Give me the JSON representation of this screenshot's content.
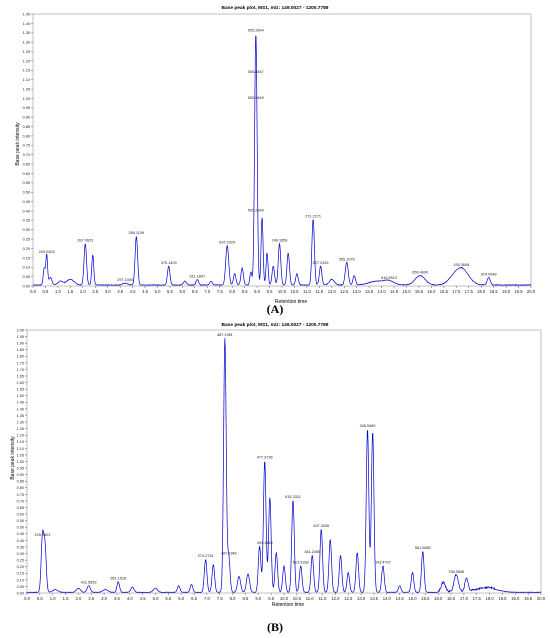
{
  "panels": [
    {
      "label": "(A)",
      "title": "Base peak plot, MS1, m/z: 149.0027 - 1200.7789",
      "xlabel": "Retention time",
      "ylabel": "Base peak intensity",
      "line_color": "#0000cc"
    },
    {
      "label": "(B)",
      "title": "Base peak plot, MS1, m/z: 149.0027 - 1200.7789",
      "xlabel": "Retention time",
      "ylabel": "Base peak intensity",
      "line_color": "#0000cc"
    }
  ],
  "chart_data": [
    {
      "type": "line",
      "title": "Base peak plot, MS1, m/z: 149.0027 - 1200.7789",
      "xlabel": "Retention time",
      "ylabel": "Base peak intensity",
      "xlim": [
        0,
        20
      ],
      "ylim": [
        0,
        1.45
      ],
      "grid": false,
      "x_ticks": [
        "0.0",
        "0.5",
        "1.0",
        "1.5",
        "2.0",
        "2.5",
        "3.0",
        "3.5",
        "4.0",
        "4.5",
        "5.0",
        "5.5",
        "6.0",
        "6.5",
        "7.0",
        "7.5",
        "8.0",
        "8.5",
        "9.0",
        "9.5",
        "10.0",
        "10.5",
        "11.0",
        "11.5",
        "12.0",
        "12.5",
        "13.0",
        "13.5",
        "14.0",
        "14.5",
        "15.0",
        "15.5",
        "16.0",
        "16.5",
        "17.0",
        "17.5",
        "18.0",
        "18.5",
        "19.0",
        "19.5",
        "20.0"
      ],
      "y_ticks": [
        "0.00",
        "0.05",
        "0.10",
        "0.15",
        "0.20",
        "0.25",
        "0.30",
        "0.35",
        "0.40",
        "0.45",
        "0.50",
        "0.55",
        "0.60",
        "0.65",
        "0.70",
        "0.75",
        "0.80",
        "0.85",
        "0.90",
        "0.95",
        "1.00",
        "1.05",
        "1.10",
        "1.15",
        "1.20",
        "1.25",
        "1.30",
        "1.35",
        "1.40",
        "1.45"
      ],
      "peaks": [
        {
          "rt": 0.45,
          "h": 0.09,
          "w": 0.04
        },
        {
          "rt": 0.55,
          "h": 0.16,
          "w": 0.035
        },
        {
          "rt": 0.7,
          "h": 0.04,
          "w": 0.06
        },
        {
          "rt": 1.1,
          "h": 0.02,
          "w": 0.1
        },
        {
          "rt": 1.5,
          "h": 0.03,
          "w": 0.15
        },
        {
          "rt": 2.1,
          "h": 0.22,
          "w": 0.05
        },
        {
          "rt": 2.4,
          "h": 0.16,
          "w": 0.04
        },
        {
          "rt": 3.7,
          "h": 0.01,
          "w": 0.1
        },
        {
          "rt": 4.15,
          "h": 0.26,
          "w": 0.05
        },
        {
          "rt": 5.45,
          "h": 0.1,
          "w": 0.05
        },
        {
          "rt": 6.1,
          "h": 0.02,
          "w": 0.06
        },
        {
          "rt": 6.6,
          "h": 0.03,
          "w": 0.05
        },
        {
          "rt": 7.15,
          "h": 0.02,
          "w": 0.05
        },
        {
          "rt": 7.8,
          "h": 0.21,
          "w": 0.06
        },
        {
          "rt": 8.1,
          "h": 0.06,
          "w": 0.05
        },
        {
          "rt": 8.4,
          "h": 0.09,
          "w": 0.05
        },
        {
          "rt": 8.75,
          "h": 0.07,
          "w": 0.04
        },
        {
          "rt": 8.95,
          "h": 1.34,
          "w": 0.05
        },
        {
          "rt": 9.2,
          "h": 0.36,
          "w": 0.04
        },
        {
          "rt": 9.4,
          "h": 0.17,
          "w": 0.04
        },
        {
          "rt": 9.65,
          "h": 0.1,
          "w": 0.05
        },
        {
          "rt": 9.9,
          "h": 0.22,
          "w": 0.05
        },
        {
          "rt": 10.25,
          "h": 0.17,
          "w": 0.05
        },
        {
          "rt": 10.6,
          "h": 0.06,
          "w": 0.05
        },
        {
          "rt": 11.25,
          "h": 0.35,
          "w": 0.05
        },
        {
          "rt": 11.55,
          "h": 0.1,
          "w": 0.05
        },
        {
          "rt": 12.0,
          "h": 0.03,
          "w": 0.1
        },
        {
          "rt": 12.6,
          "h": 0.12,
          "w": 0.06
        },
        {
          "rt": 12.9,
          "h": 0.05,
          "w": 0.05
        },
        {
          "rt": 13.8,
          "h": 0.02,
          "w": 0.3
        },
        {
          "rt": 14.3,
          "h": 0.02,
          "w": 0.2
        },
        {
          "rt": 15.55,
          "h": 0.05,
          "w": 0.2
        },
        {
          "rt": 16.8,
          "h": 0.015,
          "w": 0.2
        },
        {
          "rt": 17.2,
          "h": 0.09,
          "w": 0.28
        },
        {
          "rt": 18.3,
          "h": 0.04,
          "w": 0.06
        }
      ],
      "annotations": [
        {
          "rt": 0.55,
          "y": 0.16,
          "text": "209.0403"
        },
        {
          "rt": 2.1,
          "y": 0.22,
          "text": "397.0623"
        },
        {
          "rt": 3.7,
          "y": 0.01,
          "text": "297.1004"
        },
        {
          "rt": 4.15,
          "y": 0.26,
          "text": "289.1109"
        },
        {
          "rt": 5.45,
          "y": 0.1,
          "text": "376.1403"
        },
        {
          "rt": 6.6,
          "y": 0.03,
          "text": "511.1897"
        },
        {
          "rt": 7.8,
          "y": 0.21,
          "text": "637.2029"
        },
        {
          "rt": 8.95,
          "y": 1.34,
          "text": "505.2844"
        },
        {
          "rt": 8.95,
          "y": 1.12,
          "text": "506.2847"
        },
        {
          "rt": 8.95,
          "y": 0.98,
          "text": "505.2849"
        },
        {
          "rt": 8.95,
          "y": 0.38,
          "text": "505.2845"
        },
        {
          "rt": 9.9,
          "y": 0.22,
          "text": "249.1659"
        },
        {
          "rt": 11.25,
          "y": 0.35,
          "text": "271.2271"
        },
        {
          "rt": 11.55,
          "y": 0.1,
          "text": "227.2425"
        },
        {
          "rt": 12.6,
          "y": 0.12,
          "text": "355.1076"
        },
        {
          "rt": 14.3,
          "y": 0.02,
          "text": "616.5513"
        },
        {
          "rt": 15.55,
          "y": 0.05,
          "text": "656.4600"
        },
        {
          "rt": 17.2,
          "y": 0.09,
          "text": "155.3608"
        },
        {
          "rt": 18.3,
          "y": 0.04,
          "text": "374.0548"
        }
      ]
    },
    {
      "type": "line",
      "title": "Base peak plot, MS1, m/z: 149.0027 - 1200.7789",
      "xlabel": "Retention time",
      "ylabel": "Base peak intensity",
      "xlim": [
        0,
        20
      ],
      "ylim": [
        0,
        2.0
      ],
      "grid": false,
      "x_ticks": [
        "0.0",
        "0.5",
        "1.0",
        "1.5",
        "2.0",
        "2.5",
        "3.0",
        "3.5",
        "4.0",
        "4.5",
        "5.0",
        "5.5",
        "6.0",
        "6.5",
        "7.0",
        "7.5",
        "8.0",
        "8.5",
        "9.0",
        "9.5",
        "10.0",
        "10.5",
        "11.0",
        "11.5",
        "12.0",
        "12.5",
        "13.0",
        "13.5",
        "14.0",
        "14.5",
        "15.0",
        "15.5",
        "16.0",
        "16.5",
        "17.0",
        "17.5",
        "18.0",
        "18.5",
        "19.0",
        "19.5",
        "20.0"
      ],
      "y_ticks": [
        "0.00",
        "0.05",
        "0.10",
        "0.15",
        "0.20",
        "0.25",
        "0.30",
        "0.35",
        "0.40",
        "0.45",
        "0.50",
        "0.55",
        "0.60",
        "0.65",
        "0.70",
        "0.75",
        "0.80",
        "0.85",
        "0.90",
        "0.95",
        "1.00",
        "1.05",
        "1.10",
        "1.15",
        "1.20",
        "1.25",
        "1.30",
        "1.35",
        "1.40",
        "1.45",
        "1.50",
        "1.55",
        "1.60",
        "1.65",
        "1.70",
        "1.75",
        "1.80",
        "1.85",
        "1.90",
        "1.95",
        "2.00"
      ],
      "peaks": [
        {
          "rt": 0.6,
          "h": 0.41,
          "w": 0.05
        },
        {
          "rt": 0.7,
          "h": 0.34,
          "w": 0.05
        },
        {
          "rt": 1.1,
          "h": 0.02,
          "w": 0.1
        },
        {
          "rt": 2.0,
          "h": 0.03,
          "w": 0.08
        },
        {
          "rt": 2.4,
          "h": 0.05,
          "w": 0.06
        },
        {
          "rt": 3.05,
          "h": 0.02,
          "w": 0.1
        },
        {
          "rt": 3.55,
          "h": 0.08,
          "w": 0.05
        },
        {
          "rt": 4.1,
          "h": 0.04,
          "w": 0.06
        },
        {
          "rt": 5.0,
          "h": 0.03,
          "w": 0.08
        },
        {
          "rt": 5.9,
          "h": 0.05,
          "w": 0.05
        },
        {
          "rt": 6.4,
          "h": 0.06,
          "w": 0.05
        },
        {
          "rt": 6.95,
          "h": 0.25,
          "w": 0.05
        },
        {
          "rt": 7.25,
          "h": 0.21,
          "w": 0.05
        },
        {
          "rt": 7.7,
          "h": 1.93,
          "w": 0.05
        },
        {
          "rt": 7.85,
          "h": 0.27,
          "w": 0.05
        },
        {
          "rt": 8.25,
          "h": 0.12,
          "w": 0.06
        },
        {
          "rt": 8.6,
          "h": 0.14,
          "w": 0.06
        },
        {
          "rt": 9.05,
          "h": 0.35,
          "w": 0.05
        },
        {
          "rt": 9.25,
          "h": 1.0,
          "w": 0.05
        },
        {
          "rt": 9.45,
          "h": 0.72,
          "w": 0.05
        },
        {
          "rt": 9.7,
          "h": 0.3,
          "w": 0.05
        },
        {
          "rt": 10.0,
          "h": 0.2,
          "w": 0.05
        },
        {
          "rt": 10.35,
          "h": 0.7,
          "w": 0.05
        },
        {
          "rt": 10.65,
          "h": 0.2,
          "w": 0.05
        },
        {
          "rt": 11.1,
          "h": 0.28,
          "w": 0.05
        },
        {
          "rt": 11.45,
          "h": 0.48,
          "w": 0.05
        },
        {
          "rt": 11.8,
          "h": 0.4,
          "w": 0.05
        },
        {
          "rt": 12.2,
          "h": 0.28,
          "w": 0.05
        },
        {
          "rt": 12.5,
          "h": 0.15,
          "w": 0.05
        },
        {
          "rt": 12.85,
          "h": 0.3,
          "w": 0.05
        },
        {
          "rt": 13.25,
          "h": 1.24,
          "w": 0.05
        },
        {
          "rt": 13.45,
          "h": 1.22,
          "w": 0.05
        },
        {
          "rt": 13.85,
          "h": 0.2,
          "w": 0.05
        },
        {
          "rt": 14.5,
          "h": 0.05,
          "w": 0.05
        },
        {
          "rt": 15.0,
          "h": 0.15,
          "w": 0.05
        },
        {
          "rt": 15.4,
          "h": 0.31,
          "w": 0.05
        },
        {
          "rt": 16.2,
          "h": 0.07,
          "w": 0.08
        },
        {
          "rt": 16.7,
          "h": 0.13,
          "w": 0.08
        },
        {
          "rt": 17.1,
          "h": 0.1,
          "w": 0.06
        },
        {
          "rt": 17.9,
          "h": 0.03,
          "w": 0.4
        }
      ],
      "annotations": [
        {
          "rt": 0.6,
          "y": 0.41,
          "text": "225.9603"
        },
        {
          "rt": 2.4,
          "y": 0.05,
          "text": "411.5653"
        },
        {
          "rt": 3.55,
          "y": 0.08,
          "text": "551.1518"
        },
        {
          "rt": 6.95,
          "y": 0.25,
          "text": "274.2715"
        },
        {
          "rt": 7.7,
          "y": 1.93,
          "text": "487.1981"
        },
        {
          "rt": 7.85,
          "y": 0.27,
          "text": "487.1946"
        },
        {
          "rt": 9.25,
          "y": 1.0,
          "text": "477.3736"
        },
        {
          "rt": 9.25,
          "y": 0.35,
          "text": "491.1466"
        },
        {
          "rt": 10.35,
          "y": 0.7,
          "text": "615.3321"
        },
        {
          "rt": 10.65,
          "y": 0.2,
          "text": "613.3186"
        },
        {
          "rt": 11.1,
          "y": 0.28,
          "text": "361.2456"
        },
        {
          "rt": 11.45,
          "y": 0.48,
          "text": "637.3035"
        },
        {
          "rt": 13.25,
          "y": 1.24,
          "text": "326.5480"
        },
        {
          "rt": 13.85,
          "y": 0.2,
          "text": "193.4707"
        },
        {
          "rt": 15.4,
          "y": 0.31,
          "text": "561.5680"
        },
        {
          "rt": 16.7,
          "y": 0.13,
          "text": "798.5558"
        }
      ]
    }
  ]
}
